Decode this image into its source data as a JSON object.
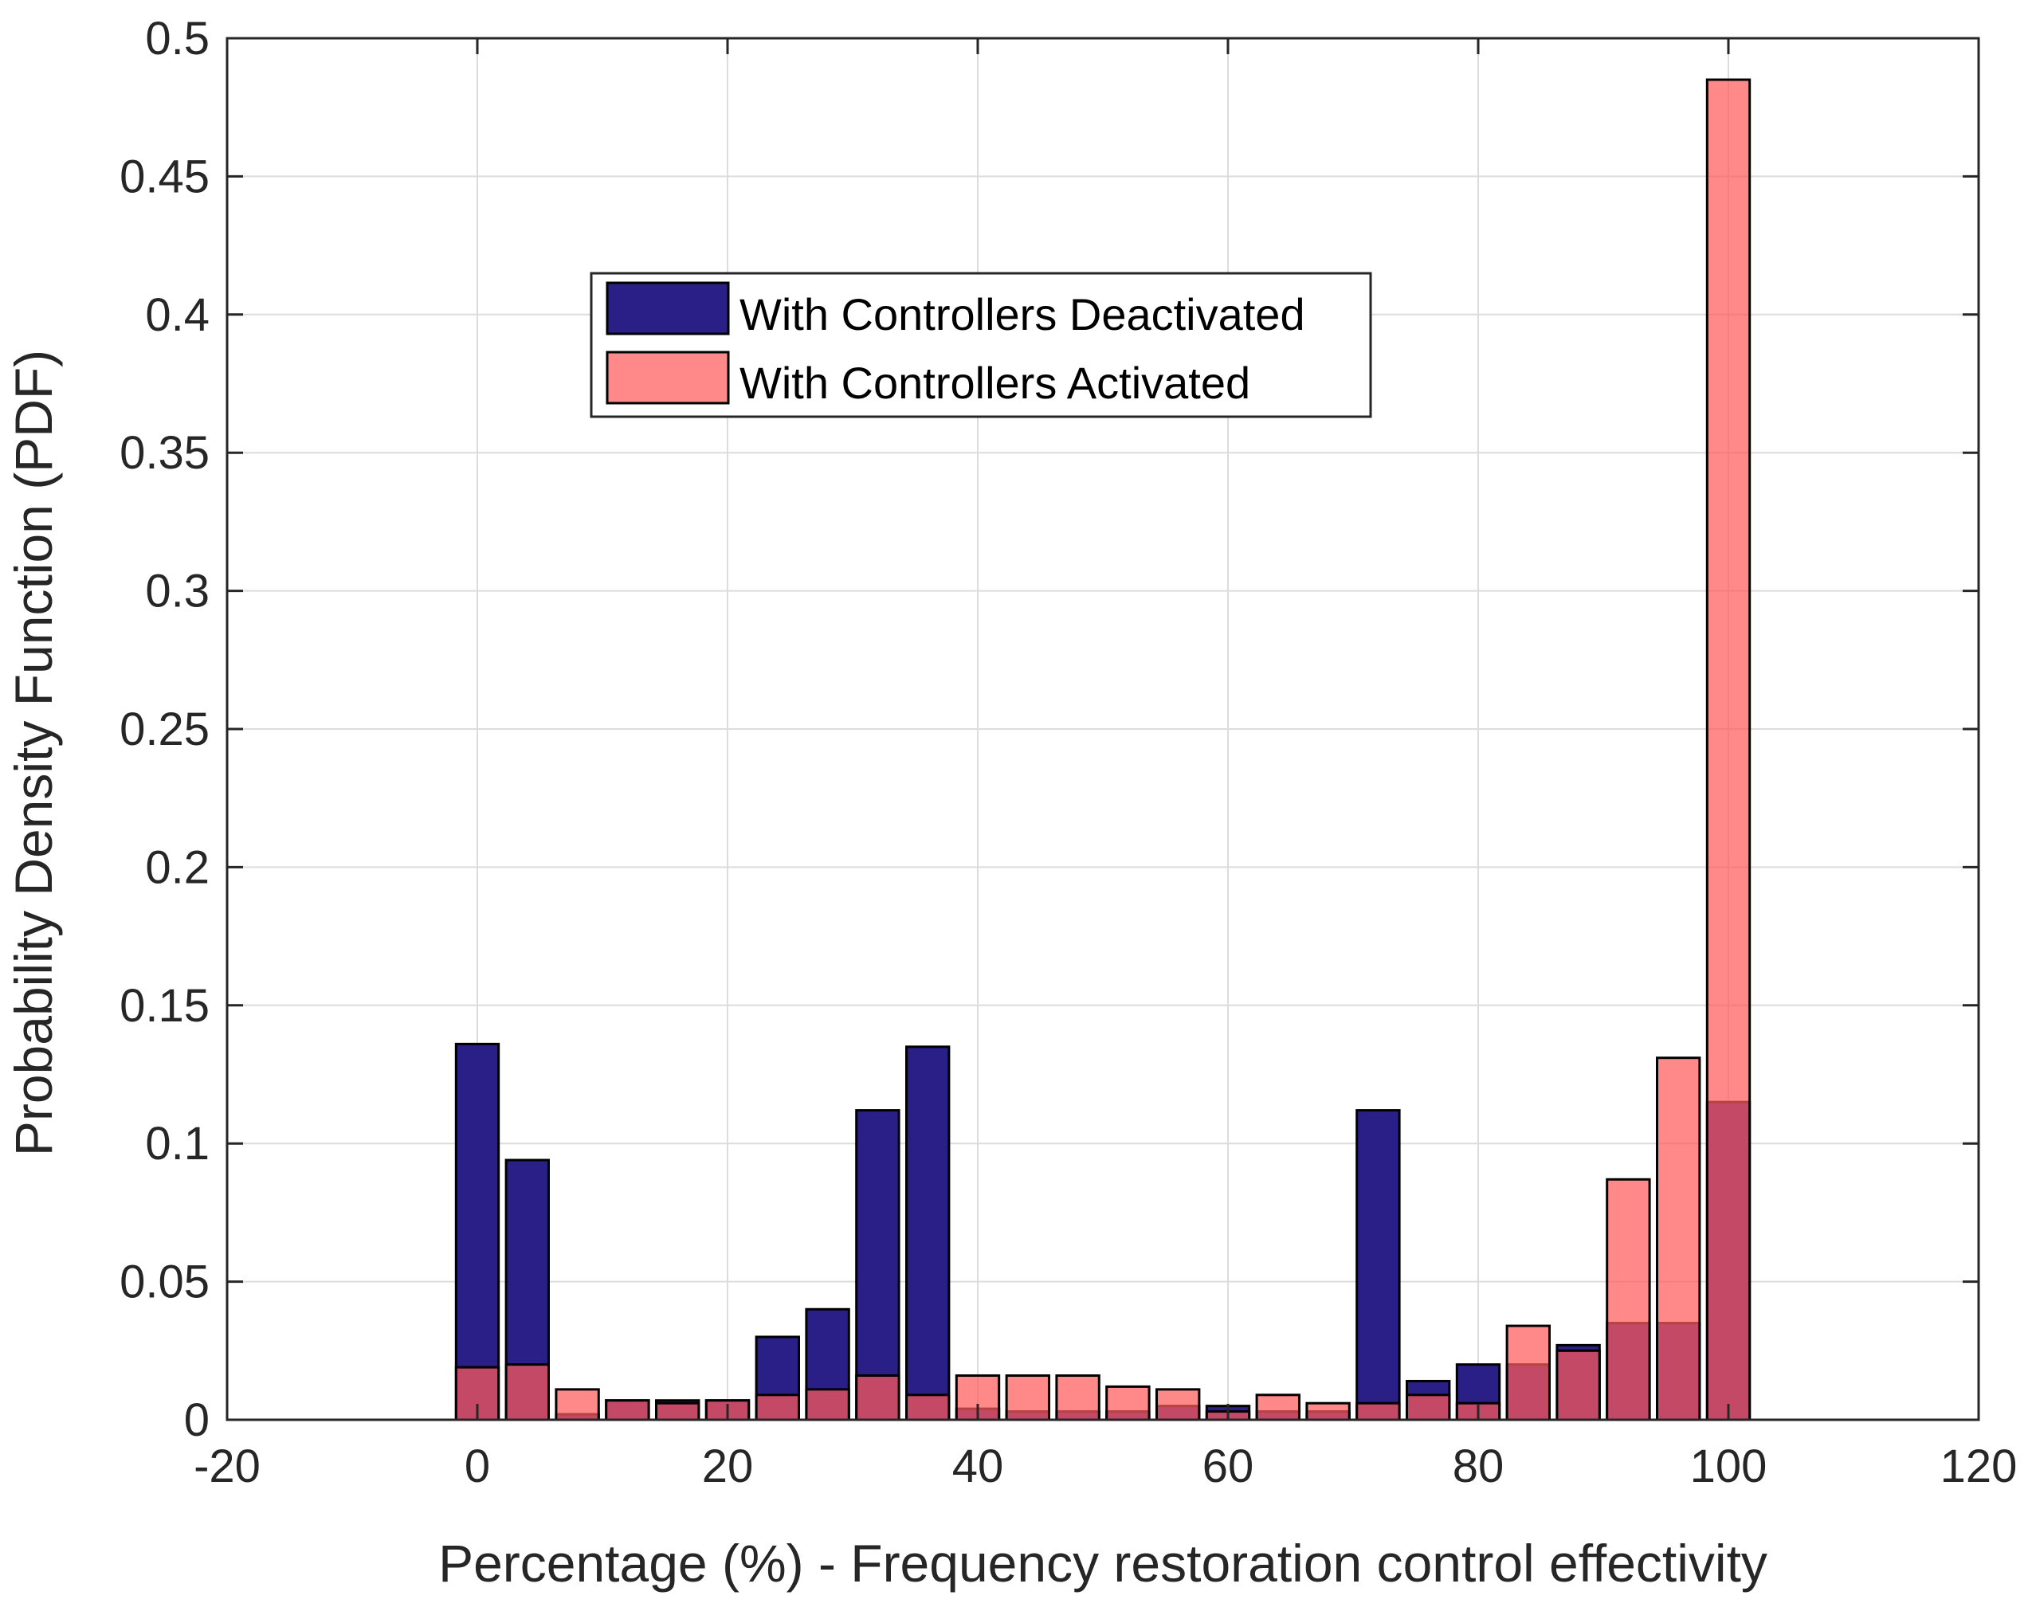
{
  "chart_data": {
    "type": "bar",
    "title": "",
    "xlabel": "Percentage (%) - Frequency restoration control effectivity",
    "ylabel": "Probability Density Function (PDF)",
    "xlim": [
      -20,
      120
    ],
    "ylim": [
      0,
      0.5
    ],
    "xticks": [
      "-20",
      "0",
      "20",
      "40",
      "60",
      "80",
      "100",
      "120"
    ],
    "yticks": [
      "0",
      "0.05",
      "0.1",
      "0.15",
      "0.2",
      "0.25",
      "0.3",
      "0.35",
      "0.4",
      "0.45",
      "0.5"
    ],
    "grid": true,
    "legend_position": "upper-center-left",
    "bin_width": 4,
    "x": [
      0,
      4,
      8,
      12,
      16,
      20,
      24,
      28,
      32,
      36,
      40,
      44,
      48,
      52,
      56,
      60,
      64,
      68,
      72,
      76,
      80,
      84,
      88,
      92,
      96,
      100
    ],
    "series": [
      {
        "name": "With Controllers Deactivated",
        "color": "#2a1f86",
        "values": [
          0.136,
          0.094,
          0.002,
          0.007,
          0.007,
          0.007,
          0.03,
          0.04,
          0.112,
          0.135,
          0.004,
          0.003,
          0.003,
          0.003,
          0.005,
          0.005,
          0.003,
          0.003,
          0.112,
          0.014,
          0.02,
          0.02,
          0.027,
          0.035,
          0.035,
          0.115
        ]
      },
      {
        "name": "With Controllers Activated",
        "color": "#ff5a5a",
        "values": [
          0.019,
          0.02,
          0.011,
          0.007,
          0.006,
          0.007,
          0.009,
          0.011,
          0.016,
          0.009,
          0.016,
          0.016,
          0.016,
          0.012,
          0.011,
          0.003,
          0.009,
          0.006,
          0.006,
          0.009,
          0.006,
          0.034,
          0.025,
          0.087,
          0.131,
          0.485
        ]
      }
    ]
  }
}
